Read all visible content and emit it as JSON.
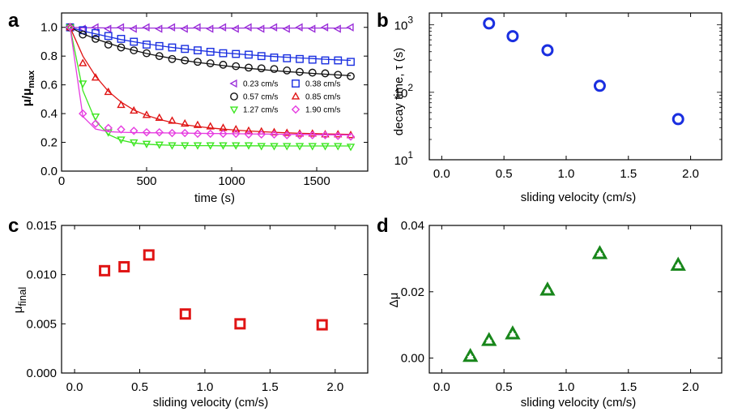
{
  "chart_data": [
    {
      "panel": "a",
      "type": "scatter",
      "xlabel": "time (s)",
      "ylabel_main": "μ/μ",
      "ylabel_sub": "max",
      "xlim": [
        0,
        1800
      ],
      "ylim": [
        0.0,
        1.1
      ],
      "xticks": [
        0,
        500,
        1000,
        1500
      ],
      "yticks": [
        0.0,
        0.2,
        0.4,
        0.6,
        0.8,
        1.0
      ],
      "x": [
        50,
        125,
        200,
        275,
        350,
        425,
        500,
        575,
        650,
        725,
        800,
        875,
        950,
        1025,
        1100,
        1175,
        1250,
        1325,
        1400,
        1475,
        1550,
        1625,
        1700
      ],
      "legend_location": "center-right",
      "series": [
        {
          "name": "0.23 cm/s",
          "marker": "triangle-left",
          "color": "#9b30d9",
          "values": [
            1.0,
            0.99,
            1.0,
            0.99,
            1.0,
            0.99,
            1.0,
            0.99,
            1.0,
            0.99,
            1.0,
            0.99,
            1.0,
            0.99,
            1.0,
            0.99,
            1.0,
            0.99,
            1.0,
            0.99,
            1.0,
            0.99,
            1.0
          ],
          "fit": [
            1.0,
            0.998,
            0.997,
            0.996,
            0.996,
            0.995,
            0.995,
            0.995,
            0.995,
            0.995,
            0.995,
            0.995,
            0.995,
            0.995,
            0.995,
            0.995,
            0.995,
            0.995,
            0.995,
            0.995,
            0.995,
            0.995,
            0.995
          ]
        },
        {
          "name": "0.38 cm/s",
          "marker": "square",
          "color": "#1a2fe0",
          "values": [
            1.0,
            0.98,
            0.96,
            0.94,
            0.92,
            0.9,
            0.88,
            0.87,
            0.86,
            0.85,
            0.84,
            0.83,
            0.82,
            0.815,
            0.81,
            0.8,
            0.79,
            0.785,
            0.78,
            0.775,
            0.77,
            0.77,
            0.76
          ],
          "fit": [
            1.0,
            0.975,
            0.955,
            0.935,
            0.915,
            0.9,
            0.885,
            0.872,
            0.86,
            0.85,
            0.84,
            0.831,
            0.823,
            0.816,
            0.809,
            0.803,
            0.797,
            0.792,
            0.787,
            0.783,
            0.778,
            0.774,
            0.77
          ]
        },
        {
          "name": "0.57 cm/s",
          "marker": "circle",
          "color": "#111111",
          "values": [
            1.0,
            0.95,
            0.92,
            0.88,
            0.86,
            0.84,
            0.82,
            0.8,
            0.78,
            0.77,
            0.76,
            0.75,
            0.74,
            0.73,
            0.72,
            0.715,
            0.71,
            0.7,
            0.69,
            0.685,
            0.68,
            0.67,
            0.66
          ],
          "fit": [
            1.0,
            0.955,
            0.92,
            0.89,
            0.862,
            0.84,
            0.818,
            0.8,
            0.784,
            0.769,
            0.756,
            0.745,
            0.734,
            0.724,
            0.715,
            0.707,
            0.699,
            0.692,
            0.686,
            0.68,
            0.674,
            0.669,
            0.664
          ]
        },
        {
          "name": "0.85 cm/s",
          "marker": "triangle-up",
          "color": "#e01414",
          "values": [
            1.0,
            0.75,
            0.65,
            0.55,
            0.46,
            0.42,
            0.39,
            0.37,
            0.35,
            0.33,
            0.32,
            0.31,
            0.3,
            0.29,
            0.28,
            0.275,
            0.27,
            0.265,
            0.26,
            0.26,
            0.255,
            0.255,
            0.25
          ],
          "fit": [
            1.0,
            0.8,
            0.66,
            0.555,
            0.48,
            0.425,
            0.388,
            0.36,
            0.338,
            0.322,
            0.31,
            0.3,
            0.292,
            0.285,
            0.279,
            0.274,
            0.27,
            0.266,
            0.263,
            0.261,
            0.259,
            0.257,
            0.255
          ]
        },
        {
          "name": "1.27 cm/s",
          "marker": "triangle-down",
          "color": "#3ce620",
          "values": [
            1.0,
            0.61,
            0.38,
            0.27,
            0.22,
            0.2,
            0.19,
            0.185,
            0.18,
            0.18,
            0.18,
            0.18,
            0.18,
            0.18,
            0.18,
            0.175,
            0.175,
            0.175,
            0.175,
            0.175,
            0.175,
            0.175,
            0.17
          ],
          "fit": [
            1.0,
            0.56,
            0.35,
            0.255,
            0.215,
            0.196,
            0.187,
            0.182,
            0.18,
            0.178,
            0.177,
            0.177,
            0.176,
            0.176,
            0.176,
            0.176,
            0.175,
            0.175,
            0.175,
            0.175,
            0.175,
            0.175,
            0.175
          ]
        },
        {
          "name": "1.90 cm/s",
          "marker": "diamond",
          "color": "#e63ce0",
          "values": [
            1.0,
            0.4,
            0.33,
            0.3,
            0.29,
            0.28,
            0.27,
            0.27,
            0.265,
            0.265,
            0.26,
            0.26,
            0.26,
            0.26,
            0.255,
            0.255,
            0.255,
            0.25,
            0.25,
            0.25,
            0.25,
            0.245,
            0.24
          ],
          "fit": [
            1.0,
            0.38,
            0.292,
            0.275,
            0.27,
            0.268,
            0.267,
            0.266,
            0.265,
            0.264,
            0.263,
            0.262,
            0.261,
            0.26,
            0.259,
            0.258,
            0.257,
            0.256,
            0.255,
            0.254,
            0.253,
            0.252,
            0.251
          ]
        }
      ]
    },
    {
      "panel": "b",
      "type": "scatter",
      "xlabel": "sliding velocity (cm/s)",
      "ylabel": "decay time, τ (s)",
      "xlim": [
        -0.1,
        2.25
      ],
      "yscale": "log",
      "ylim": [
        10,
        1500
      ],
      "xticks": [
        "0.0",
        "0.5",
        "1.0",
        "1.5",
        "2.0"
      ],
      "ytick_base": "10",
      "ytick_exponents": [
        "1",
        "2",
        "3"
      ],
      "marker": "circle",
      "color": "#1a2fe0",
      "x": [
        0.38,
        0.57,
        0.85,
        1.27,
        1.9
      ],
      "values": [
        1050,
        680,
        420,
        125,
        40
      ]
    },
    {
      "panel": "c",
      "type": "scatter",
      "xlabel": "sliding velocity (cm/s)",
      "ylabel_main": "μ",
      "ylabel_sub": "final",
      "xlim": [
        -0.1,
        2.25
      ],
      "ylim": [
        0.0,
        0.015
      ],
      "xticks": [
        "0.0",
        "0.5",
        "1.0",
        "1.5",
        "2.0"
      ],
      "yticks": [
        "0.000",
        "0.005",
        "0.010",
        "0.015"
      ],
      "marker": "square",
      "color": "#e01414",
      "x": [
        0.23,
        0.38,
        0.57,
        0.85,
        1.27,
        1.9
      ],
      "values": [
        0.0104,
        0.0108,
        0.012,
        0.006,
        0.005,
        0.0049
      ]
    },
    {
      "panel": "d",
      "type": "scatter",
      "xlabel": "sliding velocity (cm/s)",
      "ylabel": "Δμ",
      "xlim": [
        -0.1,
        2.25
      ],
      "ylim": [
        -0.0045,
        0.04
      ],
      "xticks": [
        "0.0",
        "0.5",
        "1.0",
        "1.5",
        "2.0"
      ],
      "yticks": [
        "0.00",
        "0.02",
        "0.04"
      ],
      "marker": "triangle-up",
      "color": "#17861a",
      "x": [
        0.23,
        0.38,
        0.57,
        0.85,
        1.27,
        1.9
      ],
      "values": [
        0.0005,
        0.0053,
        0.0073,
        0.0205,
        0.0315,
        0.028
      ]
    }
  ]
}
